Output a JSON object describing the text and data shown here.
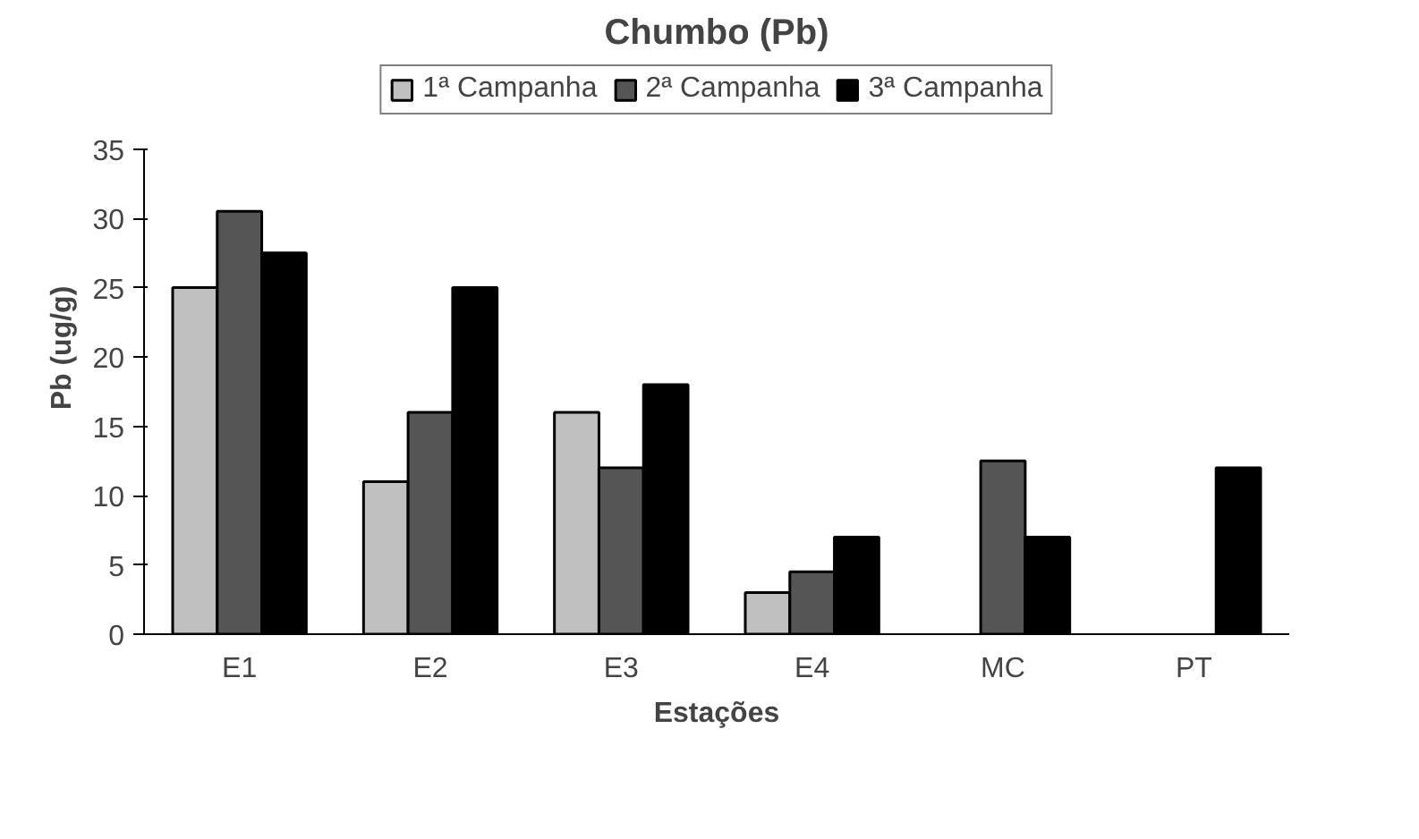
{
  "chart_data": {
    "type": "bar",
    "title": "Chumbo (Pb)",
    "xlabel": "Estações",
    "ylabel": "Pb (ug/g)",
    "categories": [
      "E1",
      "E2",
      "E3",
      "E4",
      "MC",
      "PT"
    ],
    "series": [
      {
        "name": "1ª Campanha",
        "color": "#c0c0c0",
        "values": [
          25,
          11,
          16,
          3,
          null,
          null
        ]
      },
      {
        "name": "2ª Campanha",
        "color": "#555555",
        "values": [
          30.5,
          16,
          12,
          4.5,
          12.5,
          null
        ]
      },
      {
        "name": "3ª Campanha",
        "color": "#000000",
        "values": [
          27.5,
          25,
          18,
          7,
          7,
          12
        ]
      }
    ],
    "ylim": [
      0,
      35
    ],
    "yticks": [
      0,
      5,
      10,
      15,
      20,
      25,
      30,
      35
    ],
    "grid": false,
    "legend": "top"
  }
}
